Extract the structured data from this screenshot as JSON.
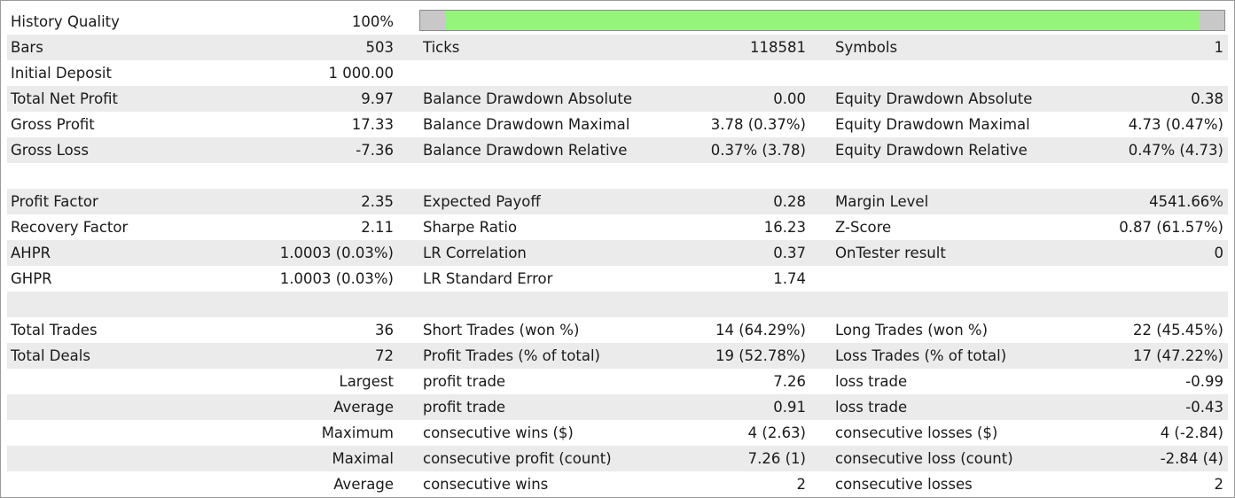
{
  "history_quality": {
    "label": "History Quality",
    "value": "100%",
    "bar_fill_fraction": 1.0,
    "bar_color": "#95f57a"
  },
  "bars": {
    "label": "Bars",
    "value": "503"
  },
  "ticks": {
    "label": "Ticks",
    "value": "118581"
  },
  "symbols": {
    "label": "Symbols",
    "value": "1"
  },
  "initial_deposit": {
    "label": "Initial Deposit",
    "value": "1 000.00"
  },
  "total_net_profit": {
    "label": "Total Net Profit",
    "value": "9.97"
  },
  "balance_dd_abs": {
    "label": "Balance Drawdown Absolute",
    "value": "0.00"
  },
  "equity_dd_abs": {
    "label": "Equity Drawdown Absolute",
    "value": "0.38"
  },
  "gross_profit": {
    "label": "Gross Profit",
    "value": "17.33"
  },
  "balance_dd_max": {
    "label": "Balance Drawdown Maximal",
    "value": "3.78 (0.37%)"
  },
  "equity_dd_max": {
    "label": "Equity Drawdown Maximal",
    "value": "4.73 (0.47%)"
  },
  "gross_loss": {
    "label": "Gross Loss",
    "value": "-7.36"
  },
  "balance_dd_rel": {
    "label": "Balance Drawdown Relative",
    "value": "0.37% (3.78)"
  },
  "equity_dd_rel": {
    "label": "Equity Drawdown Relative",
    "value": "0.47% (4.73)"
  },
  "profit_factor": {
    "label": "Profit Factor",
    "value": "2.35"
  },
  "expected_payoff": {
    "label": "Expected Payoff",
    "value": "0.28"
  },
  "margin_level": {
    "label": "Margin Level",
    "value": "4541.66%"
  },
  "recovery_factor": {
    "label": "Recovery Factor",
    "value": "2.11"
  },
  "sharpe_ratio": {
    "label": "Sharpe Ratio",
    "value": "16.23"
  },
  "z_score": {
    "label": "Z-Score",
    "value": "0.87 (61.57%)"
  },
  "ahpr": {
    "label": "AHPR",
    "value": "1.0003 (0.03%)"
  },
  "lr_correlation": {
    "label": "LR Correlation",
    "value": "0.37"
  },
  "ontester_result": {
    "label": "OnTester result",
    "value": "0"
  },
  "ghpr": {
    "label": "GHPR",
    "value": "1.0003 (0.03%)"
  },
  "lr_std_error": {
    "label": "LR Standard Error",
    "value": "1.74"
  },
  "total_trades": {
    "label": "Total Trades",
    "value": "36"
  },
  "short_trades": {
    "label": "Short Trades (won %)",
    "value": "14 (64.29%)"
  },
  "long_trades": {
    "label": "Long Trades (won %)",
    "value": "22 (45.45%)"
  },
  "total_deals": {
    "label": "Total Deals",
    "value": "72"
  },
  "profit_trades": {
    "label": "Profit Trades (% of total)",
    "value": "19 (52.78%)"
  },
  "loss_trades": {
    "label": "Loss Trades (% of total)",
    "value": "17 (47.22%)"
  },
  "largest": {
    "prefix": "Largest",
    "profit_label": "profit trade",
    "profit_value": "7.26",
    "loss_label": "loss trade",
    "loss_value": "-0.99"
  },
  "average": {
    "prefix": "Average",
    "profit_label": "profit trade",
    "profit_value": "0.91",
    "loss_label": "loss trade",
    "loss_value": "-0.43"
  },
  "maximum": {
    "prefix": "Maximum",
    "profit_label": "consecutive wins ($)",
    "profit_value": "4 (2.63)",
    "loss_label": "consecutive losses ($)",
    "loss_value": "4 (-2.84)"
  },
  "maximal": {
    "prefix": "Maximal",
    "profit_label": "consecutive profit (count)",
    "profit_value": "7.26 (1)",
    "loss_label": "consecutive loss (count)",
    "loss_value": "-2.84 (4)"
  },
  "average_consec": {
    "prefix": "Average",
    "profit_label": "consecutive wins",
    "profit_value": "2",
    "loss_label": "consecutive losses",
    "loss_value": "2"
  }
}
